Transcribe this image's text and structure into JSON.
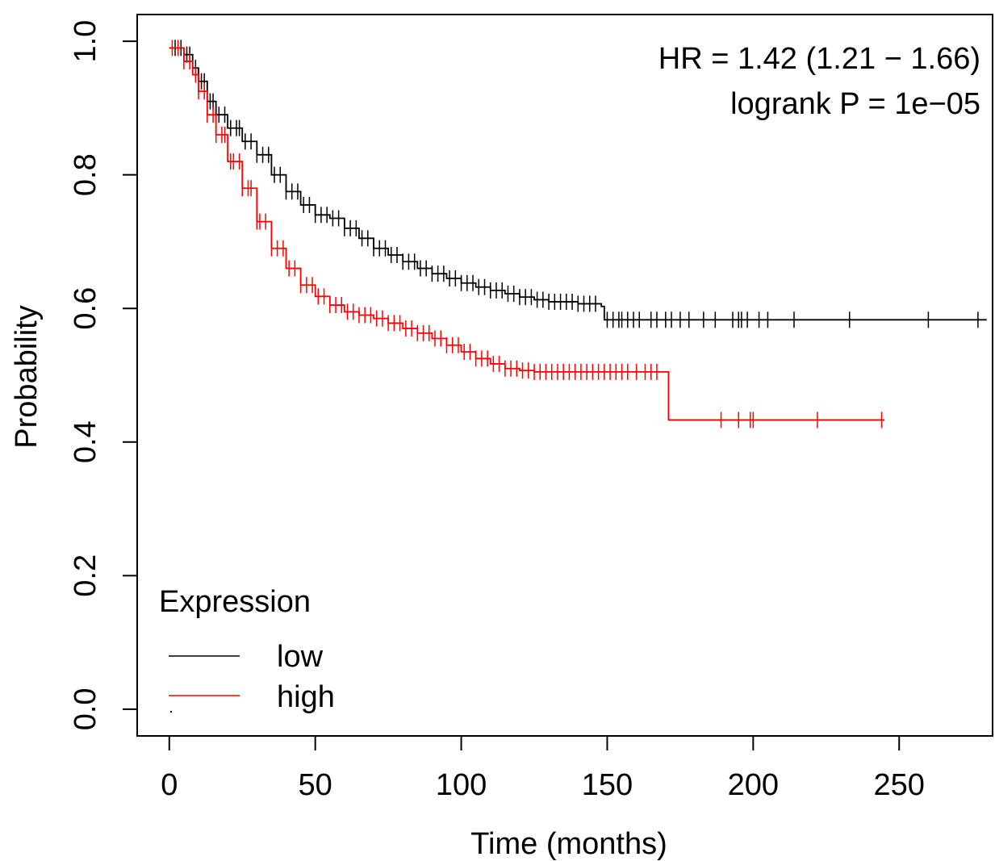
{
  "chart_data": {
    "type": "line",
    "title": "",
    "xlabel": "Time (months)",
    "ylabel": "Probability",
    "xlim": [
      -11,
      282
    ],
    "ylim": [
      -0.04,
      1.04
    ],
    "xticks": [
      0,
      50,
      100,
      150,
      200,
      250
    ],
    "yticks": [
      0.0,
      0.2,
      0.4,
      0.6,
      0.8,
      1.0
    ],
    "xtick_labels": [
      "0",
      "50",
      "100",
      "150",
      "200",
      "250"
    ],
    "ytick_labels": [
      "0.0",
      "0.2",
      "0.4",
      "0.6",
      "0.8",
      "1.0"
    ],
    "grid": false,
    "legend_position": "bottom-left",
    "annotations": {
      "hr": "HR = 1.42 (1.21 − 1.66)",
      "logrank": "logrank P = 1e−05"
    },
    "legend": {
      "title": "Expression",
      "items": [
        "low",
        "high"
      ]
    },
    "series": [
      {
        "name": "low",
        "color": "#000000",
        "points": [
          [
            0,
            0.99
          ],
          [
            5,
            0.98
          ],
          [
            8,
            0.96
          ],
          [
            10,
            0.94
          ],
          [
            13,
            0.91
          ],
          [
            16,
            0.89
          ],
          [
            20,
            0.87
          ],
          [
            25,
            0.85
          ],
          [
            30,
            0.83
          ],
          [
            35,
            0.8
          ],
          [
            40,
            0.775
          ],
          [
            45,
            0.755
          ],
          [
            50,
            0.74
          ],
          [
            55,
            0.735
          ],
          [
            60,
            0.72
          ],
          [
            65,
            0.705
          ],
          [
            70,
            0.69
          ],
          [
            75,
            0.68
          ],
          [
            80,
            0.67
          ],
          [
            85,
            0.66
          ],
          [
            90,
            0.652
          ],
          [
            95,
            0.645
          ],
          [
            100,
            0.638
          ],
          [
            105,
            0.632
          ],
          [
            110,
            0.627
          ],
          [
            115,
            0.622
          ],
          [
            120,
            0.617
          ],
          [
            125,
            0.613
          ],
          [
            130,
            0.61
          ],
          [
            140,
            0.607
          ],
          [
            148,
            0.603
          ],
          [
            149,
            0.583
          ],
          [
            280,
            0.583
          ]
        ],
        "censor_ticks": [
          2,
          4,
          6,
          7,
          9,
          11,
          12,
          14,
          15,
          17,
          19,
          21,
          23,
          24,
          26,
          28,
          30,
          32,
          34,
          36,
          38,
          40,
          42,
          44,
          46,
          48,
          50,
          52,
          54,
          56,
          58,
          60,
          62,
          64,
          66,
          68,
          70,
          72,
          74,
          76,
          78,
          80,
          82,
          84,
          86,
          88,
          90,
          92,
          94,
          96,
          98,
          100,
          102,
          104,
          106,
          108,
          110,
          112,
          114,
          116,
          118,
          120,
          122,
          124,
          126,
          128,
          130,
          132,
          134,
          136,
          138,
          140,
          142,
          144,
          146,
          150,
          152,
          154,
          155,
          157,
          159,
          161,
          165,
          167,
          170,
          172,
          175,
          178,
          183,
          187,
          193,
          195,
          196,
          198,
          202,
          205,
          214,
          233,
          260,
          277
        ]
      },
      {
        "name": "high",
        "color": "#ff0000",
        "points": [
          [
            0,
            0.99
          ],
          [
            5,
            0.97
          ],
          [
            8,
            0.95
          ],
          [
            10,
            0.925
          ],
          [
            13,
            0.89
          ],
          [
            16,
            0.86
          ],
          [
            20,
            0.82
          ],
          [
            25,
            0.78
          ],
          [
            30,
            0.73
          ],
          [
            35,
            0.69
          ],
          [
            40,
            0.66
          ],
          [
            45,
            0.635
          ],
          [
            50,
            0.618
          ],
          [
            55,
            0.605
          ],
          [
            60,
            0.595
          ],
          [
            65,
            0.59
          ],
          [
            70,
            0.585
          ],
          [
            75,
            0.578
          ],
          [
            80,
            0.57
          ],
          [
            85,
            0.563
          ],
          [
            90,
            0.555
          ],
          [
            95,
            0.545
          ],
          [
            100,
            0.535
          ],
          [
            105,
            0.525
          ],
          [
            110,
            0.517
          ],
          [
            115,
            0.51
          ],
          [
            120,
            0.507
          ],
          [
            125,
            0.505
          ],
          [
            171,
            0.505
          ],
          [
            171,
            0.433
          ],
          [
            245,
            0.433
          ]
        ],
        "censor_ticks": [
          1,
          3,
          5,
          7,
          9,
          10,
          12,
          13,
          15,
          16,
          18,
          19,
          21,
          22,
          24,
          25,
          27,
          28,
          30,
          31,
          33,
          35,
          37,
          39,
          41,
          43,
          45,
          47,
          49,
          51,
          53,
          55,
          57,
          59,
          61,
          63,
          65,
          67,
          69,
          71,
          73,
          75,
          77,
          79,
          81,
          83,
          85,
          87,
          89,
          91,
          93,
          95,
          97,
          99,
          101,
          103,
          105,
          107,
          109,
          111,
          113,
          115,
          117,
          119,
          121,
          123,
          125,
          127,
          129,
          131,
          133,
          135,
          137,
          139,
          141,
          143,
          145,
          147,
          149,
          151,
          153,
          155,
          157,
          160,
          163,
          165,
          167,
          189,
          195,
          199,
          200,
          222,
          244
        ]
      }
    ]
  }
}
